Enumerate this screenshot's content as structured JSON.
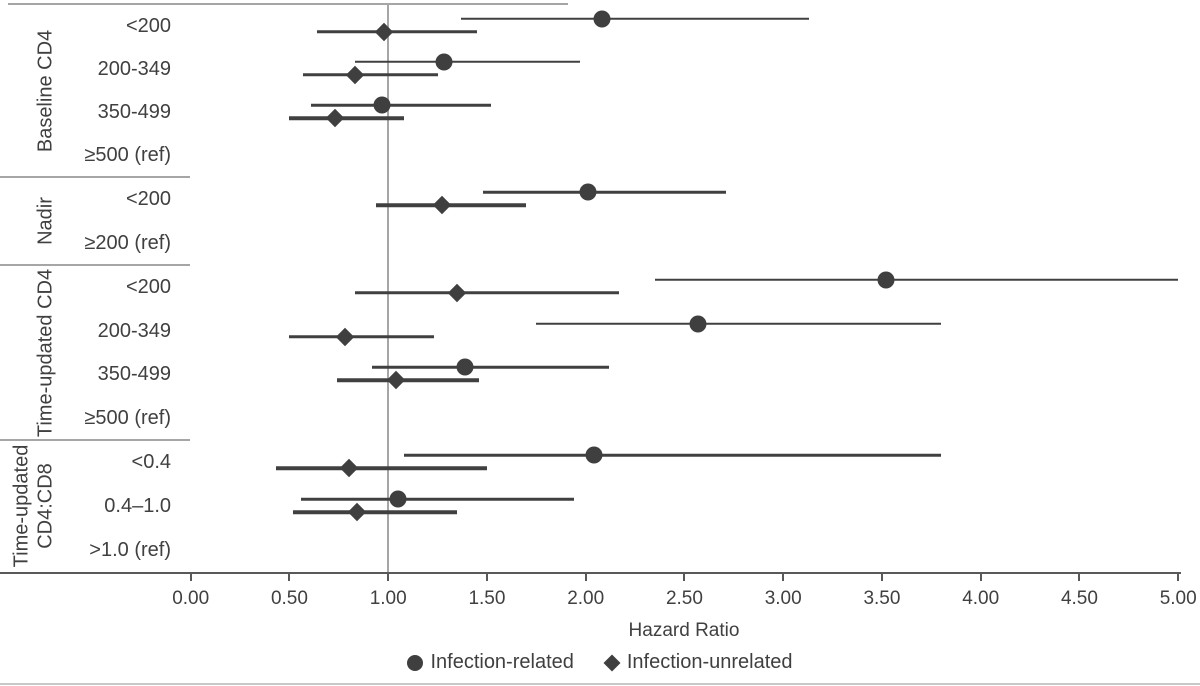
{
  "chart_data": {
    "type": "scatter",
    "variant": "forest-plot",
    "title": "",
    "xlabel": "Hazard Ratio",
    "xlim": [
      0,
      5
    ],
    "x_tick_step": 0.5,
    "x_ticks": [
      "0.00",
      "0.50",
      "1.00",
      "1.50",
      "2.00",
      "2.50",
      "3.00",
      "3.50",
      "4.00",
      "4.50",
      "5.00"
    ],
    "reference_line": 1.0,
    "grid": "off",
    "legend_position": "bottom",
    "legend": [
      {
        "label": "Infection-related",
        "marker": "circle"
      },
      {
        "label": "Infection-unrelated",
        "marker": "diamond"
      }
    ],
    "series_names": {
      "related": "Infection-related",
      "unrelated": "Infection-unrelated"
    },
    "groups": [
      {
        "label": "Baseline CD4",
        "rows": [
          {
            "label": "<200",
            "related": {
              "hr": 2.08,
              "lo": 1.37,
              "hi": 3.13
            },
            "unrelated": {
              "hr": 0.98,
              "lo": 0.64,
              "hi": 1.45
            }
          },
          {
            "label": "200-349",
            "related": {
              "hr": 1.28,
              "lo": 0.83,
              "hi": 1.97
            },
            "unrelated": {
              "hr": 0.83,
              "lo": 0.57,
              "hi": 1.25
            }
          },
          {
            "label": "350-499",
            "related": {
              "hr": 0.97,
              "lo": 0.61,
              "hi": 1.52
            },
            "unrelated": {
              "hr": 0.73,
              "lo": 0.5,
              "hi": 1.08
            }
          },
          {
            "label": "≥500 (ref)"
          }
        ]
      },
      {
        "label": "Nadir",
        "rows": [
          {
            "label": "<200",
            "related": {
              "hr": 2.01,
              "lo": 1.48,
              "hi": 2.71
            },
            "unrelated": {
              "hr": 1.27,
              "lo": 0.94,
              "hi": 1.7
            }
          },
          {
            "label": "≥200 (ref)"
          }
        ]
      },
      {
        "label": "Time-updated CD4",
        "rows": [
          {
            "label": "<200",
            "related": {
              "hr": 3.52,
              "lo": 2.35,
              "hi": 5.0
            },
            "unrelated": {
              "hr": 1.35,
              "lo": 0.83,
              "hi": 2.17
            }
          },
          {
            "label": "200-349",
            "related": {
              "hr": 2.57,
              "lo": 1.75,
              "hi": 3.8
            },
            "unrelated": {
              "hr": 0.78,
              "lo": 0.5,
              "hi": 1.23
            }
          },
          {
            "label": "350-499",
            "related": {
              "hr": 1.39,
              "lo": 0.92,
              "hi": 2.12
            },
            "unrelated": {
              "hr": 1.04,
              "lo": 0.74,
              "hi": 1.46
            }
          },
          {
            "label": "≥500 (ref)"
          }
        ]
      },
      {
        "label": "Time-updated CD4:CD8",
        "label_lines": [
          "Time-updated",
          "CD4:CD8"
        ],
        "rows": [
          {
            "label": "<0.4",
            "related": {
              "hr": 2.04,
              "lo": 1.08,
              "hi": 3.8
            },
            "unrelated": {
              "hr": 0.8,
              "lo": 0.43,
              "hi": 1.5
            }
          },
          {
            "label": "0.4–1.0",
            "related": {
              "hr": 1.05,
              "lo": 0.56,
              "hi": 1.94
            },
            "unrelated": {
              "hr": 0.84,
              "lo": 0.52,
              "hi": 1.35
            }
          },
          {
            "label": ">1.0 (ref)"
          }
        ]
      }
    ],
    "colors": {
      "marker": "#3f3f3f",
      "ci_line": "#404040",
      "reference_line": "#a6a6a6",
      "separator": "#a6a6a6",
      "axis": "#595959",
      "text": "#404040",
      "background": "#ffffff"
    }
  }
}
